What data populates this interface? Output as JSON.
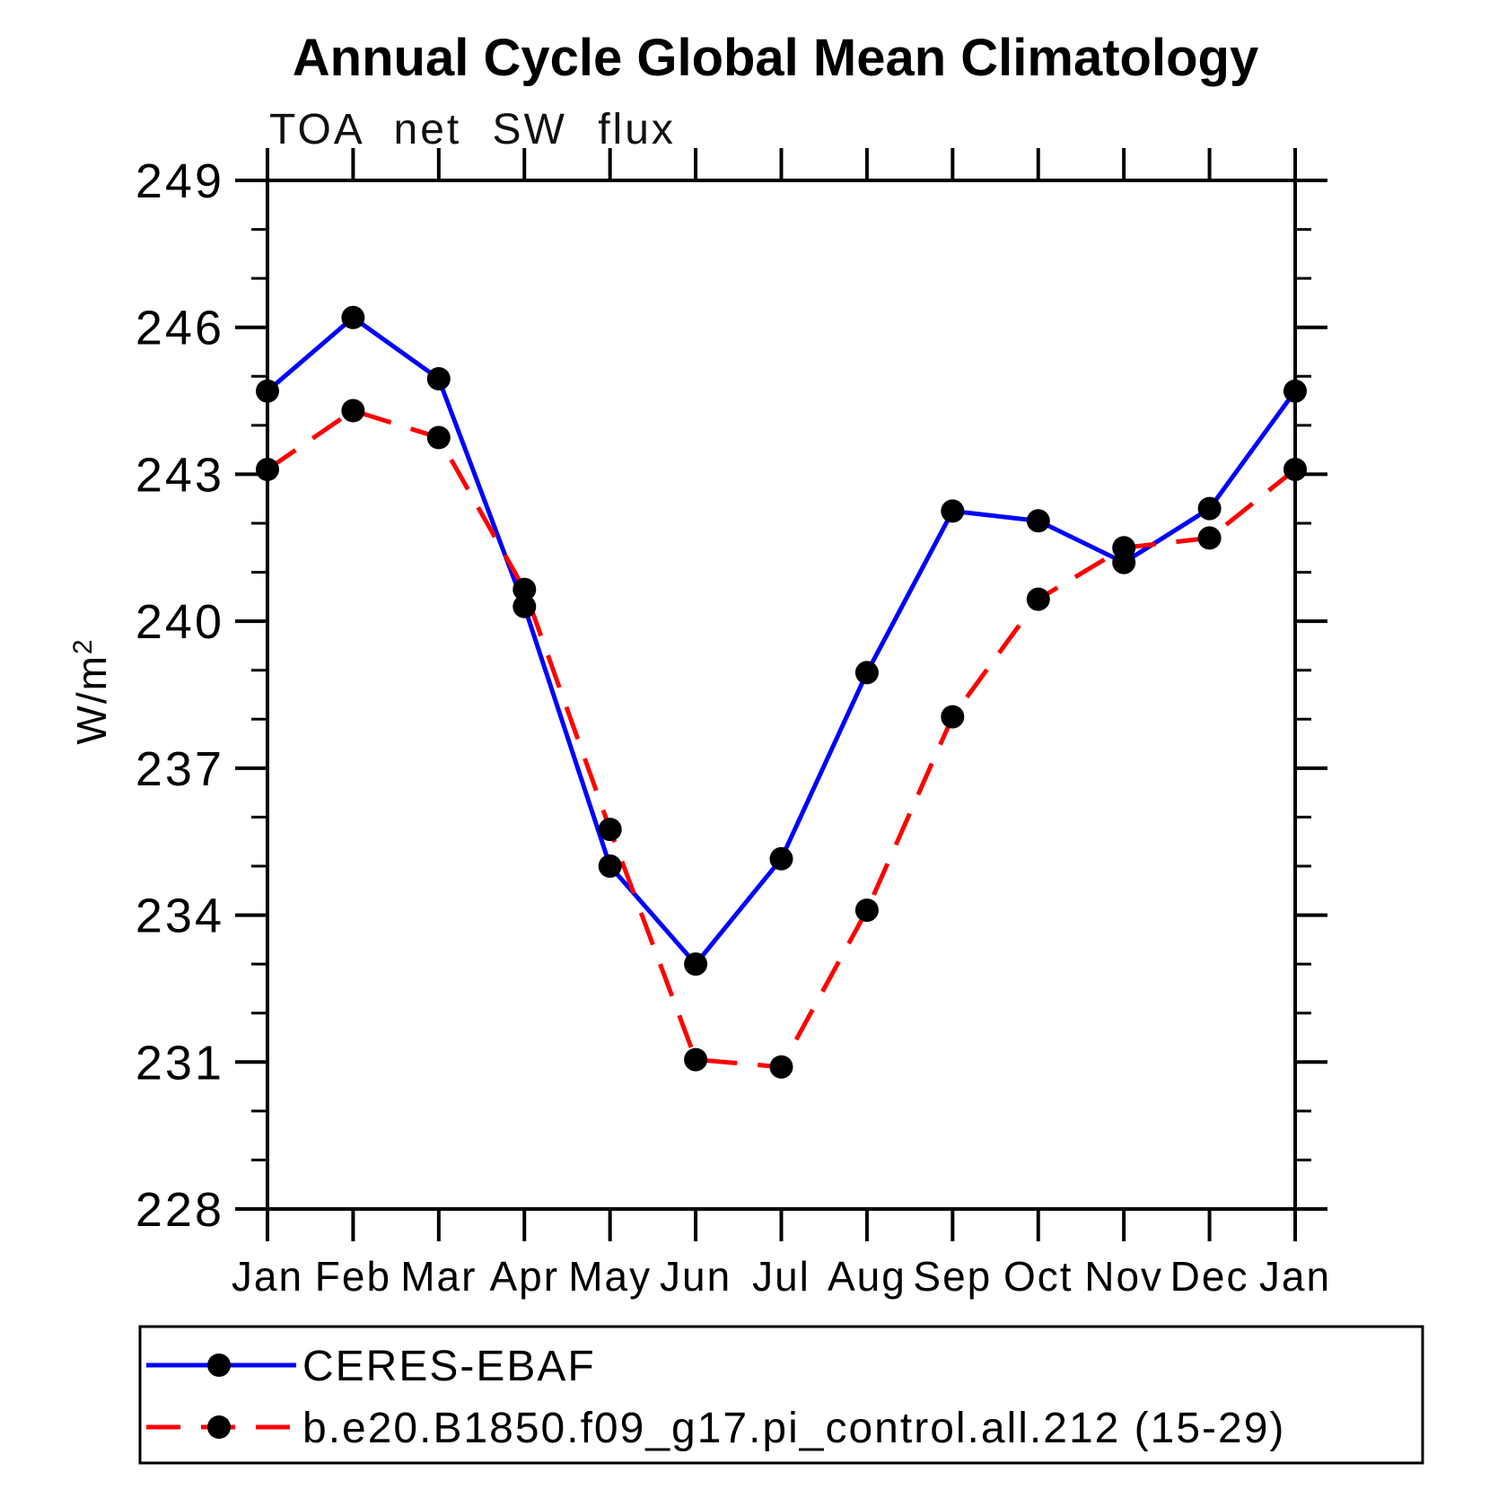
{
  "page": {
    "background": "#ffffff",
    "axis_color": "#000000",
    "text_color": "#000000"
  },
  "header": {
    "title": "Annual Cycle Global Mean Climatology",
    "subtitle": "TOA net SW flux"
  },
  "chart_data": {
    "type": "line",
    "title": "Annual Cycle Global Mean Climatology",
    "subtitle": "TOA net SW flux",
    "ylabel": {
      "text": "W/m",
      "superscript": "2"
    },
    "xlabel": "",
    "ylim": [
      228,
      249
    ],
    "ytick_major": [
      228,
      231,
      234,
      237,
      240,
      243,
      246,
      249
    ],
    "ytick_minor_step": 1,
    "grid": false,
    "legend_position": "bottom",
    "categories": [
      "Jan",
      "Feb",
      "Mar",
      "Apr",
      "May",
      "Jun",
      "Jul",
      "Aug",
      "Sep",
      "Oct",
      "Nov",
      "Dec",
      "Jan"
    ],
    "series": [
      {
        "name": "CERES-EBAF",
        "color": "#0000ff",
        "line_style": "solid",
        "marker": "circle",
        "marker_color": "#000000",
        "values": [
          244.7,
          246.2,
          244.95,
          240.3,
          235.0,
          233.0,
          235.15,
          238.95,
          242.25,
          242.05,
          241.2,
          242.3,
          244.7
        ]
      },
      {
        "name": "b.e20.B1850.f09_g17.pi_control.all.212 (15-29)",
        "color": "#ff0000",
        "line_style": "dashed",
        "marker": "circle",
        "marker_color": "#000000",
        "values": [
          243.1,
          244.3,
          243.75,
          240.65,
          235.75,
          231.05,
          230.9,
          234.1,
          238.05,
          240.45,
          241.5,
          241.7,
          243.1
        ]
      }
    ]
  }
}
